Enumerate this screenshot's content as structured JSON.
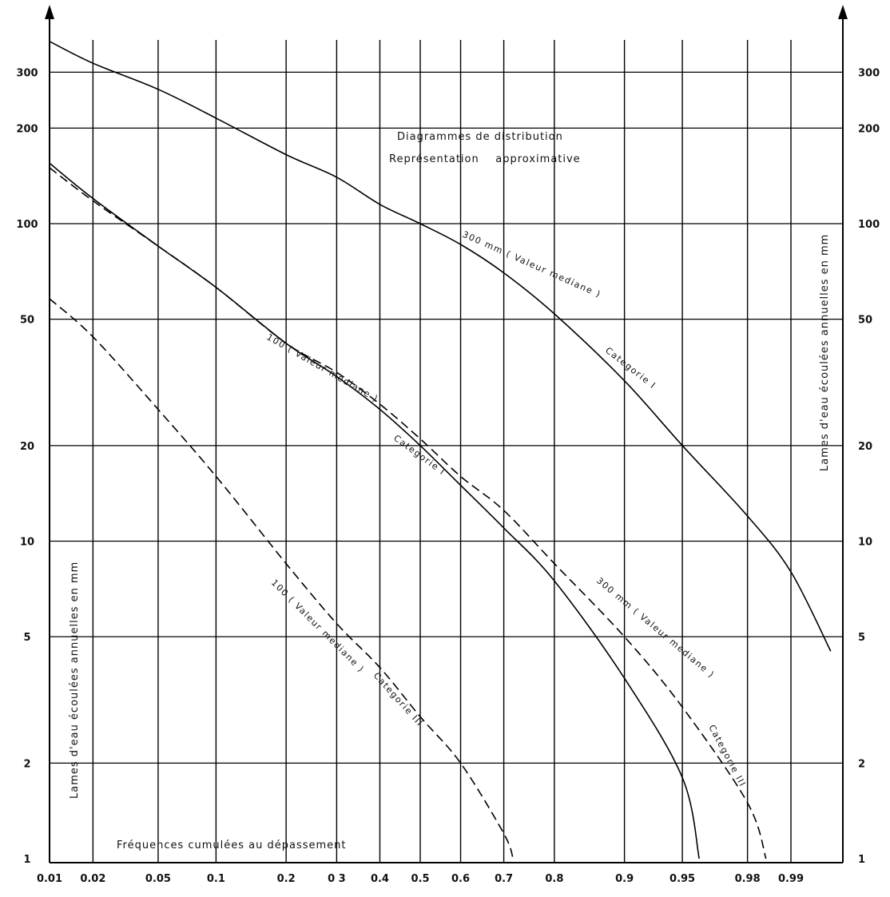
{
  "chart_data": {
    "type": "line",
    "title_lines": [
      "Diagrammes de distribution",
      "Représentation    approximative"
    ],
    "xlabel": "Fréquences cumulées au dépassement",
    "ylabel_left": "Lames d'eau écoulées annuelles en mm",
    "ylabel_right": "Lames d'eau écoulées annuelles en mm",
    "x_scale": "normal-probability",
    "y_scale": "log",
    "xlim": [
      0.01,
      0.995
    ],
    "ylim": [
      1,
      400
    ],
    "x_ticks": [
      0.01,
      0.02,
      0.05,
      0.1,
      0.2,
      0.3,
      0.4,
      0.5,
      0.6,
      0.7,
      0.8,
      0.9,
      0.95,
      0.98,
      0.99
    ],
    "x_tick_labels": [
      "0.01",
      "0.02",
      "0.05",
      "0.1",
      "0.2",
      "0 3",
      "0.4",
      "0.5",
      "0.6",
      "0.7",
      "0.8",
      "0.9",
      "0.95",
      "0.98",
      "0.99"
    ],
    "y_ticks": [
      1,
      2,
      5,
      10,
      20,
      50,
      100,
      200,
      300
    ],
    "y_tick_labels_left": [
      "1",
      "2",
      "5",
      "10",
      "20",
      "50",
      "100",
      "200",
      "300"
    ],
    "y_tick_labels_right": [
      "1",
      "2",
      "5",
      "10",
      "20",
      "50",
      "100",
      "200",
      "300"
    ],
    "grid": true,
    "series": [
      {
        "name": "300 mm ( Valeur mediane )   Categorie I",
        "style": "solid",
        "label_parts": [
          "300 mm ( Valeur mediane )",
          "Categorie  I"
        ],
        "x": [
          0.01,
          0.02,
          0.05,
          0.1,
          0.2,
          0.3,
          0.4,
          0.5,
          0.6,
          0.7,
          0.8,
          0.9,
          0.95,
          0.98,
          0.99,
          0.995
        ],
        "y": [
          375,
          320,
          265,
          215,
          165,
          140,
          115,
          100,
          86,
          70,
          52,
          32,
          20,
          12,
          8,
          4.5
        ]
      },
      {
        "name": "100 ( Valeur mediane )   Categorie I",
        "style": "solid",
        "label_parts": [
          "100 ( Valeur mediane )",
          "Categorie  I"
        ],
        "x": [
          0.01,
          0.02,
          0.05,
          0.1,
          0.2,
          0.3,
          0.4,
          0.5,
          0.6,
          0.7,
          0.8,
          0.9,
          0.95,
          0.96
        ],
        "y": [
          155,
          120,
          85,
          63,
          42,
          33,
          26,
          20,
          15,
          11,
          7.5,
          3.7,
          1.8,
          1
        ]
      },
      {
        "name": "300 mm ( Valeur mediane )   Categorie III",
        "style": "dashed",
        "label_parts": [
          "300 mm ( Valeur mediane )",
          "Categorie  III"
        ],
        "x": [
          0.01,
          0.02,
          0.05,
          0.1,
          0.2,
          0.3,
          0.4,
          0.5,
          0.6,
          0.7,
          0.8,
          0.9,
          0.95,
          0.98,
          0.985
        ],
        "y": [
          150,
          118,
          85,
          63,
          42,
          34,
          27,
          21,
          16,
          12.5,
          8.5,
          5,
          3,
          1.5,
          1
        ]
      },
      {
        "name": "100 ( Valeur mediane )   Categorie III",
        "style": "dashed",
        "label_parts": [
          "100 ( Valeur mediane )",
          "Categorie  III"
        ],
        "x": [
          0.01,
          0.02,
          0.05,
          0.1,
          0.2,
          0.3,
          0.4,
          0.5,
          0.6,
          0.7,
          0.72
        ],
        "y": [
          58,
          44,
          26,
          16,
          8.5,
          5.5,
          4,
          2.8,
          2,
          1.2,
          1
        ]
      }
    ]
  }
}
